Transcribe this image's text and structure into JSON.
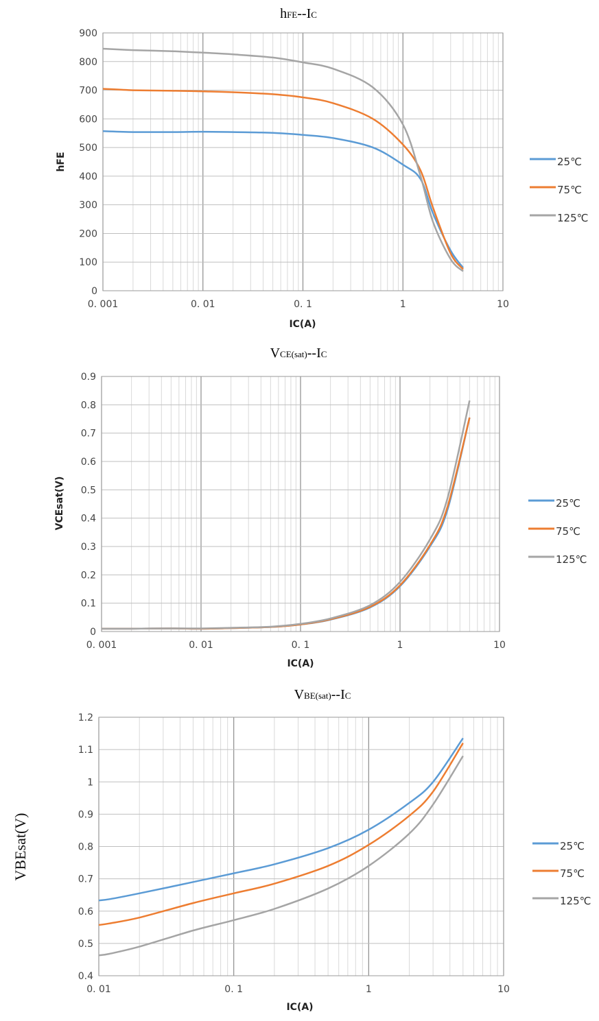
{
  "chart_data": [
    {
      "type": "line",
      "title": "hFE--IC",
      "title_main": "h",
      "title_sub1": "FE",
      "title_mid": "--I",
      "title_sub2": "C",
      "xlabel": "IC(A)",
      "ylabel": "hFE",
      "x_scale": "log",
      "xlim": [
        0.001,
        10
      ],
      "ylim": [
        0,
        900
      ],
      "x_ticks": [
        0.001,
        0.01,
        0.1,
        1,
        10
      ],
      "x_tick_labels": [
        "0. 001",
        "0. 01",
        "0. 1",
        "1",
        "10"
      ],
      "y_ticks": [
        0,
        100,
        200,
        300,
        400,
        500,
        600,
        700,
        800,
        900
      ],
      "y_tick_labels": [
        "0",
        "100",
        "200",
        "300",
        "400",
        "500",
        "600",
        "700",
        "800",
        "900"
      ],
      "grid": true,
      "legend_position": "right",
      "series": [
        {
          "name": "25℃",
          "color": "#5b9bd5",
          "x": [
            0.001,
            0.002,
            0.005,
            0.01,
            0.02,
            0.05,
            0.1,
            0.2,
            0.5,
            1,
            1.5,
            2,
            3,
            4
          ],
          "y": [
            557,
            554,
            554,
            555,
            554,
            551,
            544,
            533,
            500,
            440,
            390,
            270,
            140,
            80
          ]
        },
        {
          "name": "75℃",
          "color": "#ed7d31",
          "x": [
            0.001,
            0.002,
            0.005,
            0.01,
            0.02,
            0.05,
            0.1,
            0.2,
            0.5,
            1,
            1.5,
            2,
            3,
            4
          ],
          "y": [
            705,
            700,
            698,
            696,
            693,
            686,
            675,
            655,
            600,
            510,
            420,
            290,
            130,
            75
          ]
        },
        {
          "name": "125℃",
          "color": "#a5a5a5",
          "x": [
            0.001,
            0.002,
            0.005,
            0.01,
            0.02,
            0.05,
            0.1,
            0.2,
            0.5,
            1,
            1.5,
            2,
            3,
            4
          ],
          "y": [
            845,
            840,
            836,
            831,
            825,
            814,
            797,
            775,
            710,
            580,
            400,
            240,
            110,
            68
          ]
        }
      ]
    },
    {
      "type": "line",
      "title": "VCE(sat)--IC",
      "title_main": "V",
      "title_sub1": "CE(sat)",
      "title_mid": "--I",
      "title_sub2": "C",
      "xlabel": "IC(A)",
      "ylabel": "VCEsat(V)",
      "x_scale": "log",
      "xlim": [
        0.001,
        10
      ],
      "ylim": [
        0,
        0.9
      ],
      "x_ticks": [
        0.001,
        0.01,
        0.1,
        1,
        10
      ],
      "x_tick_labels": [
        "0. 001",
        "0. 01",
        "0. 1",
        "1",
        "10"
      ],
      "y_ticks": [
        0,
        0.1,
        0.2,
        0.3,
        0.4,
        0.5,
        0.6,
        0.7,
        0.8,
        0.9
      ],
      "y_tick_labels": [
        "0",
        "0.1",
        "0.2",
        "0.3",
        "0.4",
        "0.5",
        "0.6",
        "0.7",
        "0.8",
        "0.9"
      ],
      "grid": true,
      "legend_position": "right",
      "series": [
        {
          "name": "25℃",
          "color": "#5b9bd5",
          "x": [
            0.001,
            0.002,
            0.005,
            0.01,
            0.02,
            0.05,
            0.1,
            0.2,
            0.5,
            1,
            2,
            3,
            5
          ],
          "y": [
            0.01,
            0.01,
            0.011,
            0.01,
            0.012,
            0.016,
            0.025,
            0.042,
            0.085,
            0.16,
            0.3,
            0.43,
            0.755
          ]
        },
        {
          "name": "75℃",
          "color": "#ed7d31",
          "x": [
            0.001,
            0.002,
            0.005,
            0.01,
            0.02,
            0.05,
            0.1,
            0.2,
            0.5,
            1,
            2,
            3,
            5
          ],
          "y": [
            0.01,
            0.01,
            0.011,
            0.01,
            0.012,
            0.016,
            0.025,
            0.043,
            0.087,
            0.163,
            0.305,
            0.44,
            0.755
          ]
        },
        {
          "name": "125℃",
          "color": "#a5a5a5",
          "x": [
            0.001,
            0.002,
            0.005,
            0.01,
            0.02,
            0.05,
            0.1,
            0.2,
            0.5,
            1,
            2,
            3,
            5
          ],
          "y": [
            0.01,
            0.01,
            0.011,
            0.011,
            0.013,
            0.017,
            0.027,
            0.046,
            0.093,
            0.175,
            0.325,
            0.47,
            0.815
          ]
        }
      ]
    },
    {
      "type": "line",
      "title": "VBE(sat)--IC",
      "title_main": "V",
      "title_sub1": "BE(sat)",
      "title_mid": "--I",
      "title_sub2": "C",
      "xlabel": "IC(A)",
      "ylabel": "VBEsat(V)",
      "x_scale": "log",
      "xlim": [
        0.01,
        10
      ],
      "ylim": [
        0.4,
        1.2
      ],
      "x_ticks": [
        0.01,
        0.1,
        1,
        10
      ],
      "x_tick_labels": [
        "0. 01",
        "0. 1",
        "1",
        "10"
      ],
      "y_ticks": [
        0.4,
        0.5,
        0.6,
        0.7,
        0.8,
        0.9,
        1.0,
        1.1,
        1.2
      ],
      "y_tick_labels": [
        "0.4",
        "0.5",
        "0.6",
        "0.7",
        "0.8",
        "0.9",
        "1",
        "1.1",
        "1.2"
      ],
      "grid": true,
      "legend_position": "right",
      "series": [
        {
          "name": "25℃",
          "color": "#5b9bd5",
          "x": [
            0.01,
            0.012,
            0.02,
            0.05,
            0.1,
            0.2,
            0.5,
            1,
            2,
            3,
            5
          ],
          "y": [
            0.633,
            0.637,
            0.655,
            0.69,
            0.717,
            0.745,
            0.795,
            0.852,
            0.935,
            1.0,
            1.135
          ]
        },
        {
          "name": "75℃",
          "color": "#ed7d31",
          "x": [
            0.01,
            0.012,
            0.02,
            0.05,
            0.1,
            0.2,
            0.5,
            1,
            2,
            3,
            5
          ],
          "y": [
            0.557,
            0.562,
            0.58,
            0.625,
            0.655,
            0.685,
            0.74,
            0.805,
            0.895,
            0.97,
            1.12
          ]
        },
        {
          "name": "125℃",
          "color": "#a5a5a5",
          "x": [
            0.01,
            0.012,
            0.02,
            0.05,
            0.1,
            0.2,
            0.5,
            1,
            2,
            3,
            5
          ],
          "y": [
            0.463,
            0.468,
            0.49,
            0.54,
            0.572,
            0.607,
            0.67,
            0.74,
            0.84,
            0.93,
            1.08
          ]
        }
      ]
    }
  ]
}
